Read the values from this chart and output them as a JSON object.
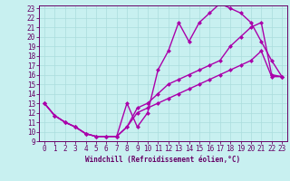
{
  "xlabel": "Windchill (Refroidissement éolien,°C)",
  "bg_color": "#c8f0f0",
  "line_color": "#aa00aa",
  "line1_x": [
    0,
    1,
    2,
    3,
    4,
    5,
    6,
    7,
    8,
    9,
    10,
    11,
    12,
    13,
    14,
    15,
    16,
    17,
    18,
    19,
    20,
    21,
    22,
    23
  ],
  "line1_y": [
    13,
    11.7,
    11.0,
    10.5,
    9.8,
    9.5,
    9.5,
    9.5,
    13.0,
    10.5,
    12.0,
    16.5,
    18.5,
    21.5,
    19.5,
    21.5,
    22.5,
    23.5,
    23.0,
    22.5,
    21.5,
    19.5,
    17.5,
    15.8
  ],
  "line2_x": [
    0,
    1,
    2,
    3,
    4,
    5,
    6,
    7,
    8,
    9,
    10,
    11,
    12,
    13,
    14,
    15,
    16,
    17,
    18,
    19,
    20,
    21,
    22,
    23
  ],
  "line2_y": [
    13,
    11.7,
    11.0,
    10.5,
    9.8,
    9.5,
    9.5,
    9.5,
    10.5,
    12.5,
    13.0,
    14.0,
    15.0,
    15.5,
    16.0,
    16.5,
    17.0,
    17.5,
    19.0,
    20.0,
    21.0,
    21.5,
    16.0,
    15.8
  ],
  "line3_x": [
    0,
    1,
    2,
    3,
    4,
    5,
    6,
    7,
    8,
    9,
    10,
    11,
    12,
    13,
    14,
    15,
    16,
    17,
    18,
    19,
    20,
    21,
    22,
    23
  ],
  "line3_y": [
    13,
    11.7,
    11.0,
    10.5,
    9.8,
    9.5,
    9.5,
    9.5,
    10.5,
    12.0,
    12.5,
    13.0,
    13.5,
    14.0,
    14.5,
    15.0,
    15.5,
    16.0,
    16.5,
    17.0,
    17.5,
    18.5,
    15.8,
    15.8
  ],
  "xlim_min": -0.5,
  "xlim_max": 23.5,
  "ylim_min": 9.0,
  "ylim_max": 23.3,
  "xticks": [
    0,
    1,
    2,
    3,
    4,
    5,
    6,
    7,
    8,
    9,
    10,
    11,
    12,
    13,
    14,
    15,
    16,
    17,
    18,
    19,
    20,
    21,
    22,
    23
  ],
  "yticks": [
    9,
    10,
    11,
    12,
    13,
    14,
    15,
    16,
    17,
    18,
    19,
    20,
    21,
    22,
    23
  ],
  "grid_color": "#aadddd",
  "markersize": 2.5,
  "linewidth": 1.0,
  "tick_fontsize": 5.5,
  "xlabel_fontsize": 5.5
}
